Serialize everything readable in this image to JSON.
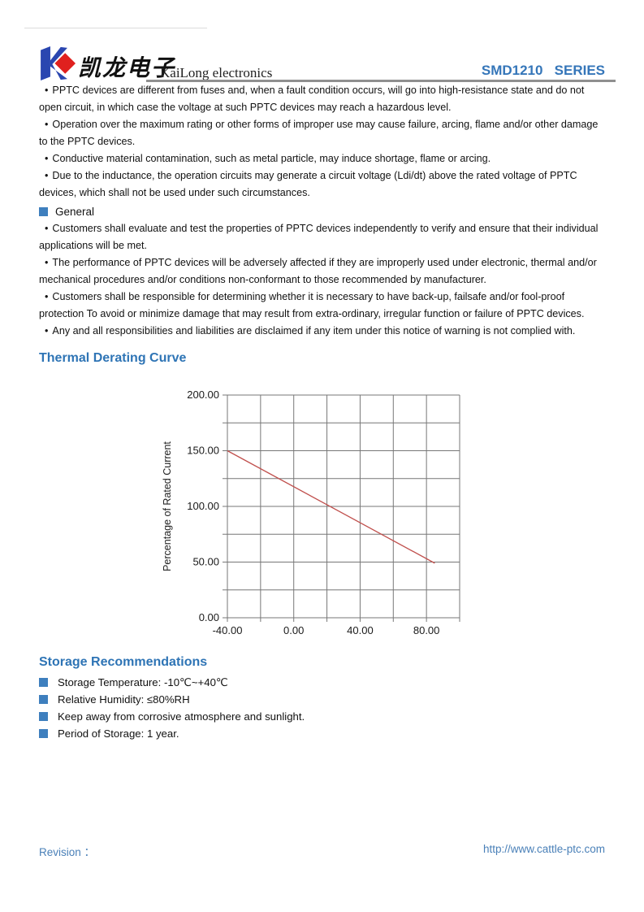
{
  "header": {
    "brand_cn": "凯龙电子",
    "brand_en": "KaiLong electronics",
    "series": "SMD1210   SERIES"
  },
  "warnings": {
    "bullet_char": "•",
    "bullets": [
      "PPTC devices are different from fuses and, when a fault condition occurs, will go into high-resistance state and do not open circuit, in which case the voltage at such PPTC devices may reach a hazardous level.",
      "Operation over the maximum rating or other forms of improper use may cause failure, arcing, flame and/or other damage to the PPTC devices.",
      "Conductive material contamination, such as metal particle, may induce shortage, flame or arcing.",
      "Due to the inductance, the operation circuits may generate a circuit voltage (Ldi/dt) above the rated voltage of PPTC devices, which shall not be used under such circumstances."
    ]
  },
  "general": {
    "title": "General",
    "bullet_char": "•",
    "bullets": [
      "Customers shall evaluate and test the properties of PPTC devices independently to verify and ensure that their individual applications will be met.",
      "The performance of PPTC devices will be adversely affected if they are improperly used under electronic, thermal and/or mechanical procedures and/or conditions non-conformant to those recommended by manufacturer.",
      "Customers shall be responsible for determining whether it is necessary to have back-up, failsafe and/or fool-proof protection To avoid or minimize damage that may result from extra-ordinary, irregular function or failure of PPTC devices.",
      "Any and all responsibilities and liabilities are disclaimed if any item under this notice of warning is not complied with."
    ]
  },
  "thermal": {
    "title": "Thermal Derating Curve"
  },
  "chart_data": {
    "type": "line",
    "title": "",
    "xlabel": "",
    "ylabel": "Percentage of Rated Current",
    "xlim": [
      -40,
      100
    ],
    "ylim": [
      0,
      200
    ],
    "x_grid_step": 20,
    "y_grid_step": 25,
    "grid": true,
    "legend_position": "none",
    "x_ticks": {
      "values": [
        -40,
        0,
        40,
        80
      ],
      "labels": [
        "-40.00",
        "0.00",
        "40.00",
        "80.00"
      ]
    },
    "y_ticks": {
      "values": [
        0,
        50,
        100,
        150,
        200
      ],
      "labels": [
        "0.00",
        "50.00",
        "100.00",
        "150.00",
        "200.00"
      ]
    },
    "series": [
      {
        "name": "thermal-derating",
        "color": "#c0504d",
        "x": [
          -40,
          85
        ],
        "y": [
          150,
          49
        ]
      }
    ]
  },
  "storage": {
    "title": "Storage Recommendations",
    "items": [
      "Storage Temperature: -10℃~+40℃",
      "Relative Humidity: ≤80%RH",
      "Keep away from corrosive atmosphere and sunlight.",
      "Period of Storage: 1 year."
    ]
  },
  "footer": {
    "revision_label": "Revision ：",
    "url": "http://www.cattle-ptc.com"
  },
  "colors": {
    "heading_blue": "#2e74b5",
    "series_blue": "#3576b9",
    "bullet_square_blue": "#3e7fbe",
    "footer_blue": "#4a80b8",
    "rule_gray": "#8f8f8f",
    "grid_gray": "#777777",
    "derating_line_red": "#c0504d",
    "logo_blue": "#2a46b0",
    "logo_red": "#e0201e"
  }
}
